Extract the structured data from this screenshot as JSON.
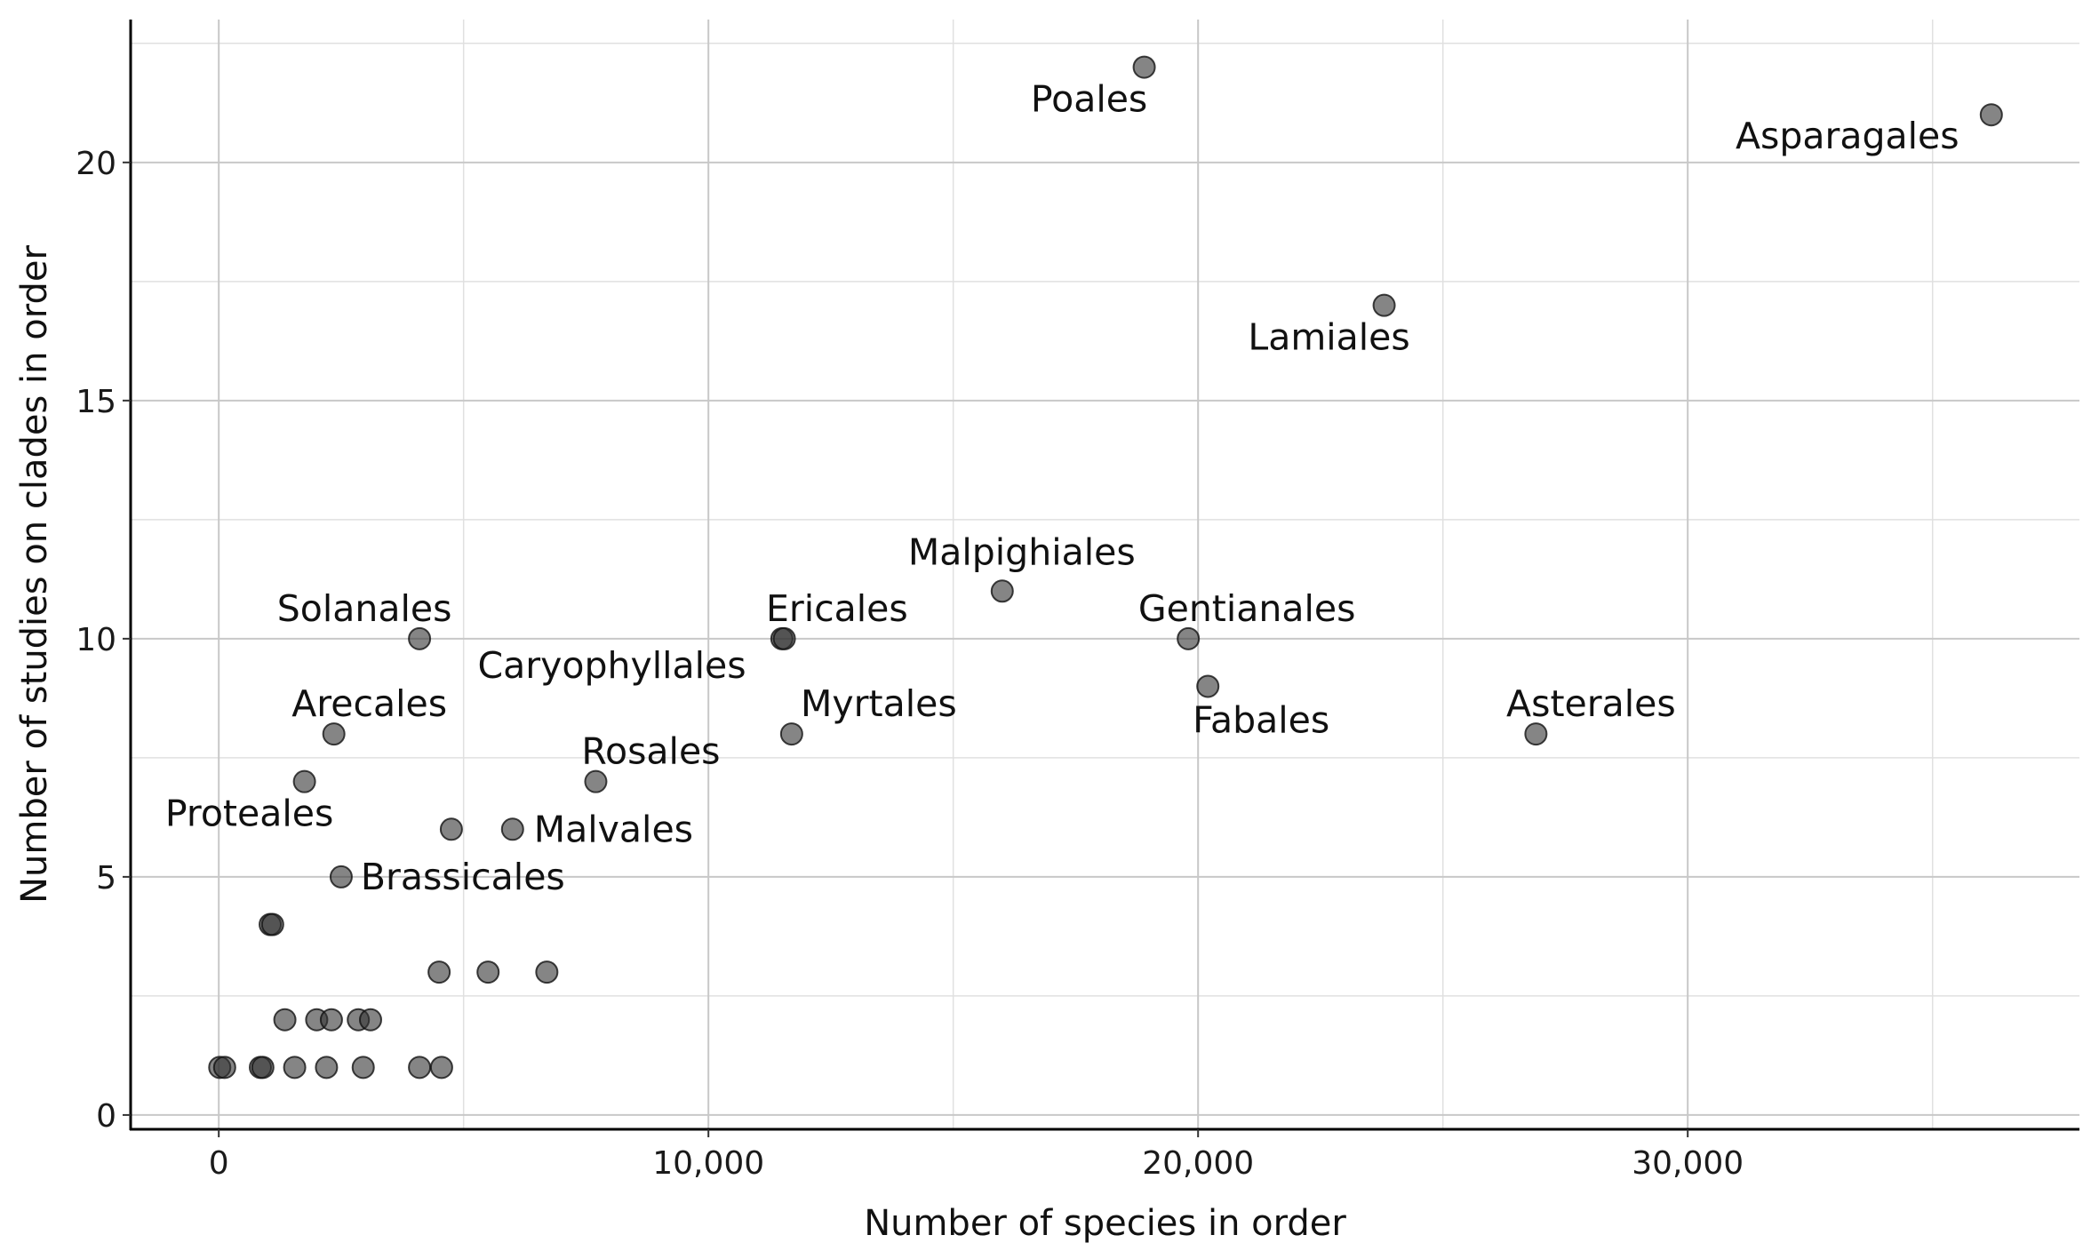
{
  "chart_data": {
    "type": "scatter",
    "title": "",
    "xlabel": "Number of species in order",
    "ylabel": "Number of studies on clades in order",
    "xlim": [
      -1800,
      38000
    ],
    "ylim": [
      -0.3,
      23.0
    ],
    "x_ticks": [
      0,
      10000,
      20000,
      30000
    ],
    "x_tick_labels": [
      "0",
      "10,000",
      "20,000",
      "30,000"
    ],
    "y_ticks": [
      0,
      5,
      10,
      15,
      20
    ],
    "y_tick_labels": [
      "0",
      "5",
      "10",
      "15",
      "20"
    ],
    "grid": true,
    "point_color": "#333333",
    "point_opacity": 0.6,
    "points": [
      {
        "x": 18900,
        "y": 22,
        "label": "Poales"
      },
      {
        "x": 36200,
        "y": 21,
        "label": "Asparagales"
      },
      {
        "x": 23800,
        "y": 17,
        "label": "Lamiales"
      },
      {
        "x": 16000,
        "y": 11,
        "label": "Malpighiales"
      },
      {
        "x": 4100,
        "y": 10,
        "label": "Solanales"
      },
      {
        "x": 11500,
        "y": 10,
        "label": "Ericales"
      },
      {
        "x": 11550,
        "y": 10,
        "label": "Caryophyllales"
      },
      {
        "x": 19800,
        "y": 10,
        "label": "Gentianales"
      },
      {
        "x": 20200,
        "y": 9,
        "label": "Fabales"
      },
      {
        "x": 2350,
        "y": 8,
        "label": "Arecales"
      },
      {
        "x": 11700,
        "y": 8,
        "label": "Myrtales"
      },
      {
        "x": 26900,
        "y": 8,
        "label": "Asterales"
      },
      {
        "x": 7700,
        "y": 7,
        "label": "Rosales"
      },
      {
        "x": 1750,
        "y": 7,
        "label": "Proteales"
      },
      {
        "x": 6000,
        "y": 6,
        "label": "Malvales"
      },
      {
        "x": 4750,
        "y": 6,
        "label": ""
      },
      {
        "x": 2500,
        "y": 5,
        "label": "Brassicales"
      },
      {
        "x": 1050,
        "y": 4,
        "label": ""
      },
      {
        "x": 1100,
        "y": 4,
        "label": ""
      },
      {
        "x": 4500,
        "y": 3,
        "label": ""
      },
      {
        "x": 5500,
        "y": 3,
        "label": ""
      },
      {
        "x": 6700,
        "y": 3,
        "label": ""
      },
      {
        "x": 1350,
        "y": 2,
        "label": ""
      },
      {
        "x": 2000,
        "y": 2,
        "label": ""
      },
      {
        "x": 2300,
        "y": 2,
        "label": ""
      },
      {
        "x": 2850,
        "y": 2,
        "label": ""
      },
      {
        "x": 3100,
        "y": 2,
        "label": ""
      },
      {
        "x": 20,
        "y": 1,
        "label": ""
      },
      {
        "x": 120,
        "y": 1,
        "label": ""
      },
      {
        "x": 850,
        "y": 1,
        "label": ""
      },
      {
        "x": 900,
        "y": 1,
        "label": ""
      },
      {
        "x": 1550,
        "y": 1,
        "label": ""
      },
      {
        "x": 2200,
        "y": 1,
        "label": ""
      },
      {
        "x": 2950,
        "y": 1,
        "label": ""
      },
      {
        "x": 4100,
        "y": 1,
        "label": ""
      },
      {
        "x": 4550,
        "y": 1,
        "label": ""
      }
    ]
  }
}
